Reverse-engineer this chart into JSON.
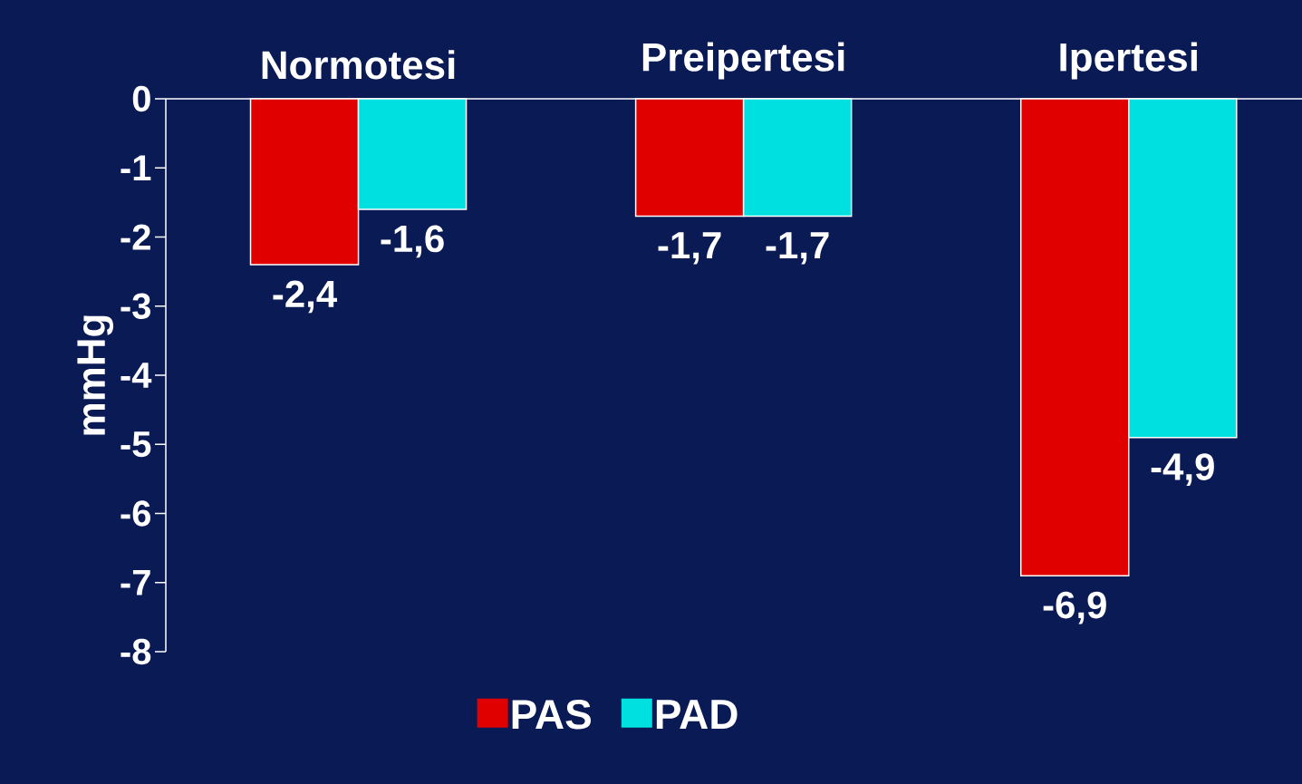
{
  "chart_data": {
    "type": "bar",
    "ylabel": "mmHg",
    "categories": [
      "Normotesi",
      "Preipertesi",
      "Ipertesi"
    ],
    "series": [
      {
        "name": "PAS",
        "color": "#e00000",
        "values": [
          -2.4,
          -1.7,
          -6.9
        ],
        "value_labels": [
          "-2,4",
          "-1,7",
          "-6,9"
        ]
      },
      {
        "name": "PAD",
        "color": "#00e0e0",
        "values": [
          -1.6,
          -1.7,
          -4.9
        ],
        "value_labels": [
          "-1,6",
          "-1,7",
          "-4,9"
        ]
      }
    ],
    "ylim": [
      -8,
      0
    ],
    "yticks": [
      0,
      -1,
      -2,
      -3,
      -4,
      -5,
      -6,
      -7,
      -8
    ],
    "legend": "bottom"
  }
}
